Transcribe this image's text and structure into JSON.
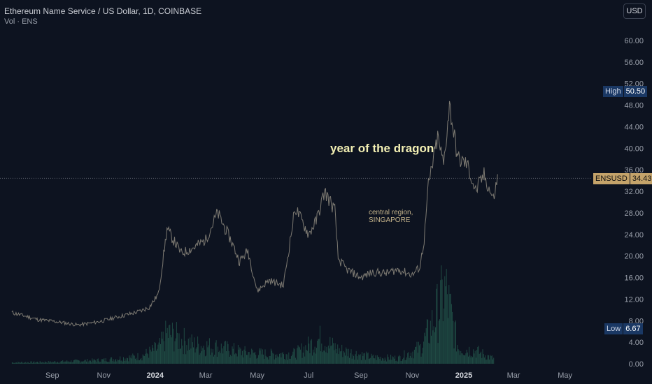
{
  "header": {
    "title": "Ethereum Name Service / US Dollar, 1D, COINBASE",
    "subtitle": "Vol · ENS",
    "currency_button": "USD"
  },
  "annotations": {
    "headline": "year of the dragon",
    "note_line1": "central region,",
    "note_line2": "SINGAPORE"
  },
  "price_labels": {
    "high_name": "High",
    "high_value": "50.50",
    "current_name": "ENSUSD",
    "current_value": "34.43",
    "low_name": "Low",
    "low_value": "6.67"
  },
  "colors": {
    "background": "#0d1320",
    "price_line": "#7d7a72",
    "volume": "#1f4a43",
    "high_tag": "#1a3864",
    "current_tag": "#c4a36a",
    "low_tag": "#1a3864"
  },
  "chart_data": {
    "type": "line",
    "title": "Ethereum Name Service / US Dollar, 1D, COINBASE",
    "x_tick_labels": [
      "Sep",
      "Nov",
      "2024",
      "Mar",
      "May",
      "Jul",
      "Sep",
      "Nov",
      "2025",
      "Mar",
      "May"
    ],
    "y_tick_labels": [
      "0.00",
      "4.00",
      "8.00",
      "12.00",
      "16.00",
      "20.00",
      "24.00",
      "28.00",
      "32.00",
      "36.00",
      "40.00",
      "44.00",
      "48.00",
      "52.00",
      "56.00",
      "60.00"
    ],
    "ylim": [
      0,
      62
    ],
    "grid": false,
    "series": [
      {
        "name": "ENSUSD",
        "unit": "USD",
        "x": [
          "2023-07-15",
          "2023-08-01",
          "2023-08-15",
          "2023-09-01",
          "2023-09-15",
          "2023-10-01",
          "2023-10-15",
          "2023-11-01",
          "2023-11-15",
          "2023-12-01",
          "2023-12-15",
          "2023-12-25",
          "2024-01-05",
          "2024-01-15",
          "2024-02-01",
          "2024-02-15",
          "2024-03-01",
          "2024-03-15",
          "2024-04-01",
          "2024-04-10",
          "2024-04-20",
          "2024-05-01",
          "2024-05-15",
          "2024-06-01",
          "2024-06-15",
          "2024-07-01",
          "2024-07-10",
          "2024-07-20",
          "2024-08-01",
          "2024-08-05",
          "2024-08-15",
          "2024-09-01",
          "2024-09-15",
          "2024-10-01",
          "2024-10-15",
          "2024-11-01",
          "2024-11-10",
          "2024-11-15",
          "2024-11-20",
          "2024-12-01",
          "2024-12-08",
          "2024-12-15",
          "2024-12-25",
          "2025-01-05",
          "2025-01-15",
          "2025-01-25",
          "2025-02-05",
          "2025-02-10"
        ],
        "values": [
          9.5,
          8.8,
          8.2,
          7.9,
          7.6,
          7.2,
          7.5,
          8.0,
          8.6,
          9.2,
          9.8,
          10.5,
          13.0,
          25.0,
          20.5,
          21.5,
          23.0,
          28.0,
          22.5,
          19.0,
          21.0,
          13.5,
          15.5,
          14.5,
          29.0,
          24.0,
          26.5,
          32.0,
          28.5,
          19.5,
          17.5,
          16.0,
          17.0,
          16.8,
          17.5,
          16.5,
          18.0,
          23.0,
          33.0,
          42.0,
          37.0,
          48.0,
          38.0,
          37.0,
          32.0,
          35.0,
          30.5,
          34.43
        ]
      },
      {
        "name": "Vol",
        "unit": "relative",
        "x": [
          "2023-07-15",
          "2023-09-01",
          "2023-11-01",
          "2023-12-15",
          "2024-01-05",
          "2024-01-15",
          "2024-02-15",
          "2024-03-15",
          "2024-04-15",
          "2024-05-15",
          "2024-06-15",
          "2024-07-15",
          "2024-08-05",
          "2024-09-15",
          "2024-10-15",
          "2024-11-10",
          "2024-11-20",
          "2024-12-01",
          "2024-12-10",
          "2024-12-25",
          "2025-01-15",
          "2025-02-05"
        ],
        "values": [
          0.2,
          0.3,
          0.6,
          1.2,
          2.5,
          4.8,
          3.0,
          2.6,
          1.8,
          1.5,
          1.6,
          4.0,
          2.2,
          1.0,
          0.9,
          2.5,
          5.0,
          8.5,
          11.5,
          2.5,
          2.0,
          0.8
        ]
      }
    ],
    "extremes": {
      "high": 50.5,
      "low": 6.67,
      "last": 34.43
    }
  }
}
